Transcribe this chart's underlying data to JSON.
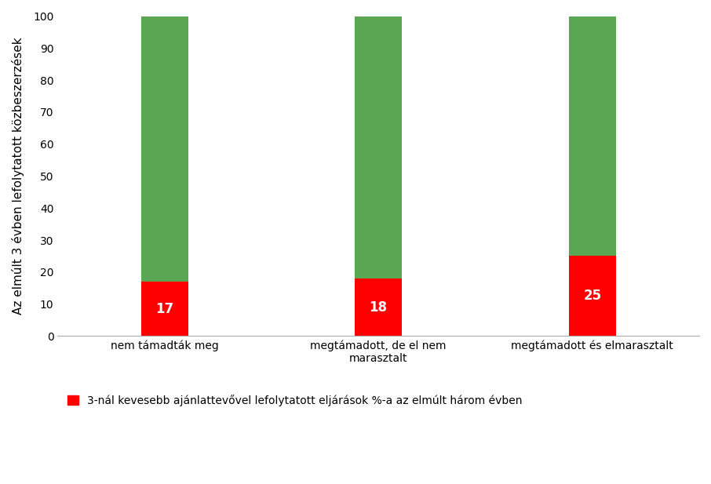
{
  "categories": [
    "nem támadták meg",
    "megtámadott, de el nem\nmarasztalt",
    "megtámadott és elmarasztalt"
  ],
  "red_values": [
    17,
    18,
    25
  ],
  "green_values": [
    83,
    82,
    75
  ],
  "red_color": "#FF0000",
  "green_color": "#5AA653",
  "ylabel": "Az elmúlt 3 évben lefolytatott közbeszerzések",
  "ylim": [
    0,
    100
  ],
  "yticks": [
    0,
    10,
    20,
    30,
    40,
    50,
    60,
    70,
    80,
    90,
    100
  ],
  "legend_label": "3-nál kevesebb ajánlattevővel lefolytatott eljárások %-a az elmúlt három évben",
  "bar_width": 0.22,
  "tick_fontsize": 10,
  "ylabel_fontsize": 11,
  "value_label_color": "#FFFFFF",
  "value_label_fontsize": 12,
  "legend_fontsize": 10
}
